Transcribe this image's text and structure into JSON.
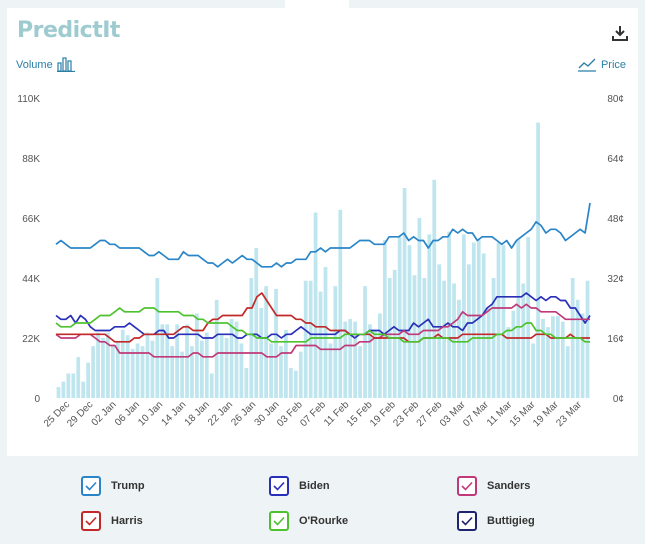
{
  "header": {
    "logo": "PredictIt",
    "volume_label": "Volume",
    "price_label": "Price"
  },
  "chart_data": {
    "type": "line",
    "x_ticks": [
      "25 Dec",
      "29 Dec",
      "02 Jan",
      "06 Jan",
      "10 Jan",
      "14 Jan",
      "18 Jan",
      "22 Jan",
      "26 Jan",
      "30 Jan",
      "03 Feb",
      "07 Feb",
      "11 Feb",
      "15 Feb",
      "19 Feb",
      "23 Feb",
      "27 Feb",
      "03 Mar",
      "07 Mar",
      "11 Mar",
      "15 Mar",
      "19 Mar",
      "23 Mar"
    ],
    "left_axis": {
      "label": "Volume",
      "ticks": [
        "0",
        "22K",
        "44K",
        "66K",
        "88K",
        "110K"
      ],
      "ylim": [
        0,
        110000
      ]
    },
    "right_axis": {
      "label": "Price",
      "ticks": [
        "0¢",
        "16¢",
        "32¢",
        "48¢",
        "64¢",
        "80¢"
      ],
      "ylim": [
        0,
        80
      ]
    },
    "volume": [
      4000,
      6000,
      9000,
      9000,
      15000,
      6000,
      13000,
      19000,
      24000,
      22000,
      24000,
      19000,
      21000,
      25000,
      23000,
      18000,
      20000,
      19000,
      24000,
      21000,
      44000,
      27000,
      27000,
      19000,
      27000,
      17000,
      27000,
      19000,
      31000,
      21000,
      24000,
      9000,
      36000,
      23000,
      22000,
      29000,
      28000,
      20000,
      11000,
      44000,
      55000,
      33000,
      41000,
      20000,
      40000,
      19000,
      25000,
      11000,
      10000,
      17000,
      43000,
      43000,
      68000,
      39000,
      48000,
      20000,
      41000,
      69000,
      28000,
      29000,
      28000,
      19000,
      41000,
      27000,
      25000,
      31000,
      58000,
      44000,
      47000,
      59000,
      77000,
      56000,
      45000,
      66000,
      44000,
      60000,
      80000,
      49000,
      43000,
      61000,
      42000,
      36000,
      60000,
      49000,
      57000,
      58000,
      53000,
      33000,
      44000,
      57000,
      56000,
      26000,
      32000,
      58000,
      42000,
      59000,
      20000,
      101000,
      29000,
      26000,
      30000,
      30000,
      28000,
      19000,
      44000,
      36000,
      31000,
      43000
    ],
    "series": [
      {
        "name": "Trump",
        "color": "#2a85c8",
        "values": [
          41,
          42,
          41,
          40,
          40,
          40,
          40,
          40,
          41,
          42,
          42,
          41,
          41,
          40,
          40,
          40,
          40,
          40,
          39,
          38,
          38,
          39,
          38,
          37,
          37,
          37,
          39,
          38,
          38,
          38,
          37,
          36,
          36,
          35,
          36,
          37,
          36,
          37,
          38,
          37,
          37,
          36,
          35,
          35,
          35,
          36,
          35,
          36,
          36,
          37,
          37,
          37,
          39,
          39,
          40,
          39,
          40,
          40,
          40,
          40,
          40,
          41,
          42,
          42,
          42,
          41,
          41,
          41,
          43,
          43,
          43,
          44,
          42,
          43,
          42,
          42,
          40,
          42,
          42,
          43,
          43,
          45,
          44,
          45,
          44,
          44,
          42,
          43,
          43,
          43,
          42,
          41,
          42,
          40,
          42,
          43,
          44,
          45,
          47,
          46,
          44,
          45,
          45,
          44,
          42,
          43,
          44,
          45,
          44,
          52
        ]
      },
      {
        "name": "Biden",
        "color": "#2a2fb8",
        "values": [
          22,
          21,
          21,
          22,
          20,
          22,
          21,
          19,
          18,
          18,
          18,
          18,
          19,
          19,
          19,
          20,
          19,
          18,
          17,
          17,
          17,
          18,
          18,
          16,
          16,
          17,
          17,
          17,
          17,
          17,
          16,
          16,
          16,
          17,
          17,
          17,
          17,
          16,
          16,
          17,
          17,
          17,
          16,
          16,
          17,
          17,
          16,
          17,
          17,
          18,
          19,
          18,
          17,
          17,
          17,
          17,
          17,
          17,
          18,
          18,
          17,
          16,
          17,
          17,
          18,
          18,
          18,
          17,
          18,
          19,
          18,
          18,
          18,
          20,
          19,
          20,
          21,
          19,
          19,
          19,
          20,
          19,
          19,
          18,
          20,
          20,
          21,
          22,
          24,
          25,
          27,
          27,
          27,
          27,
          27,
          27,
          28,
          27,
          26,
          27,
          26,
          27,
          27,
          26,
          26,
          24,
          24,
          22,
          20,
          22
        ]
      },
      {
        "name": "Sanders",
        "color": "#c03a7a",
        "values": [
          17,
          16,
          16,
          16,
          16,
          17,
          17,
          17,
          16,
          15,
          15,
          14,
          14,
          12,
          12,
          12,
          12,
          12,
          12,
          12,
          11,
          11,
          11,
          11,
          11,
          11,
          11,
          11,
          12,
          12,
          11,
          11,
          11,
          12,
          12,
          12,
          12,
          12,
          12,
          12,
          12,
          12,
          12,
          11,
          11,
          11,
          12,
          12,
          12,
          14,
          14,
          14,
          14,
          14,
          13,
          13,
          13,
          13,
          13,
          14,
          14,
          14,
          15,
          15,
          15,
          16,
          16,
          17,
          17,
          17,
          17,
          18,
          17,
          17,
          17,
          18,
          18,
          18,
          18,
          19,
          19,
          20,
          21,
          23,
          22,
          22,
          22,
          22,
          23,
          24,
          24,
          24,
          24,
          24,
          25,
          24,
          25,
          24,
          24,
          23,
          23,
          23,
          23,
          22,
          21,
          21,
          21,
          21,
          21,
          21
        ]
      },
      {
        "name": "Harris",
        "color": "#c22a2a",
        "values": [
          17,
          17,
          17,
          17,
          17,
          17,
          17,
          17,
          17,
          17,
          17,
          16,
          15,
          15,
          15,
          15,
          16,
          16,
          17,
          17,
          17,
          17,
          17,
          17,
          17,
          18,
          19,
          19,
          18,
          18,
          18,
          20,
          21,
          21,
          22,
          22,
          22,
          22,
          22,
          24,
          24,
          27,
          28,
          26,
          24,
          22,
          22,
          22,
          22,
          21,
          21,
          20,
          20,
          19,
          19,
          19,
          18,
          18,
          18,
          18,
          17,
          17,
          17,
          17,
          17,
          16,
          16,
          16,
          16,
          16,
          16,
          16,
          15,
          15,
          15,
          16,
          16,
          16,
          17,
          16,
          16,
          16,
          16,
          17,
          17,
          17,
          17,
          17,
          17,
          17,
          17,
          17,
          16,
          16,
          16,
          16,
          16,
          16,
          17,
          17,
          17,
          16,
          16,
          16,
          16,
          17,
          16,
          16,
          16,
          16
        ]
      },
      {
        "name": "O'Rourke",
        "color": "#4ec22e",
        "values": [
          20,
          19,
          19,
          19,
          20,
          20,
          20,
          20,
          21,
          22,
          22,
          22,
          23,
          24,
          23,
          23,
          23,
          23,
          24,
          24,
          24,
          23,
          23,
          23,
          23,
          23,
          22,
          22,
          22,
          21,
          21,
          20,
          20,
          20,
          20,
          20,
          19,
          18,
          18,
          17,
          17,
          16,
          16,
          16,
          15,
          15,
          15,
          15,
          15,
          15,
          15,
          15,
          16,
          16,
          16,
          16,
          16,
          16,
          16,
          17,
          17,
          17,
          17,
          17,
          18,
          17,
          17,
          17,
          16,
          16,
          16,
          15,
          15,
          15,
          15,
          16,
          16,
          16,
          16,
          16,
          16,
          15,
          15,
          15,
          15,
          16,
          16,
          16,
          16,
          16,
          17,
          17,
          18,
          18,
          19,
          19,
          20,
          20,
          18,
          18,
          17,
          17,
          16,
          16,
          16,
          16,
          16,
          16,
          15,
          15
        ]
      },
      {
        "name": "Buttigieg",
        "color": "#1f2470",
        "values": []
      }
    ]
  },
  "legend": [
    {
      "name": "Trump",
      "color": "#2a85c8"
    },
    {
      "name": "Biden",
      "color": "#2a2fb8"
    },
    {
      "name": "Sanders",
      "color": "#c03a7a"
    },
    {
      "name": "Harris",
      "color": "#c22a2a"
    },
    {
      "name": "O'Rourke",
      "color": "#4ec22e"
    },
    {
      "name": "Buttigieg",
      "color": "#1f2470"
    }
  ]
}
